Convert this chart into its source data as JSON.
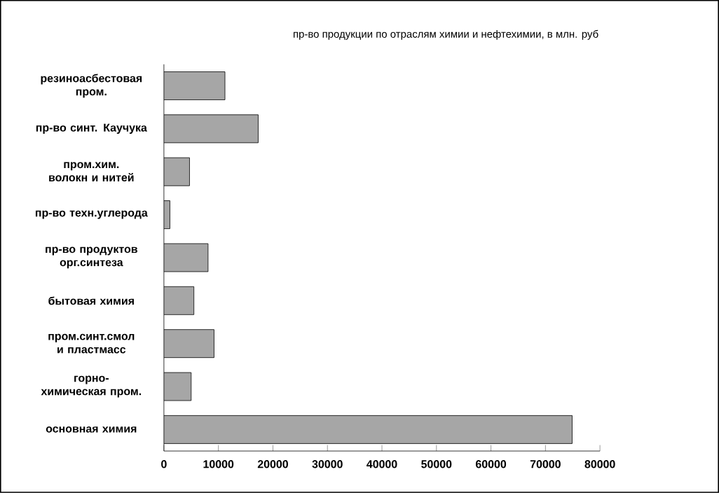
{
  "chart_data": {
    "type": "bar",
    "orientation": "horizontal",
    "title": "пр-во продукции по отраслям химии и нефтехимии, в млн. руб",
    "categories": [
      "резиноасбестовая пром.",
      "пр-во синт. Каучука",
      "пром.хим. волокн и нитей",
      "пр-во техн.углерода",
      "пр-во продуктов орг.синтеза",
      "бытовая химия",
      "пром.синт.смол и пластмасс",
      "горно-химическая пром.",
      "основная химия"
    ],
    "values": [
      11200,
      17300,
      4700,
      1100,
      8100,
      5500,
      9200,
      5000,
      74900
    ],
    "color": "#a6a6a6",
    "xlim": [
      0,
      80000
    ],
    "xticks": [
      0,
      10000,
      20000,
      30000,
      40000,
      50000,
      60000,
      70000,
      80000
    ],
    "grid": false
  }
}
